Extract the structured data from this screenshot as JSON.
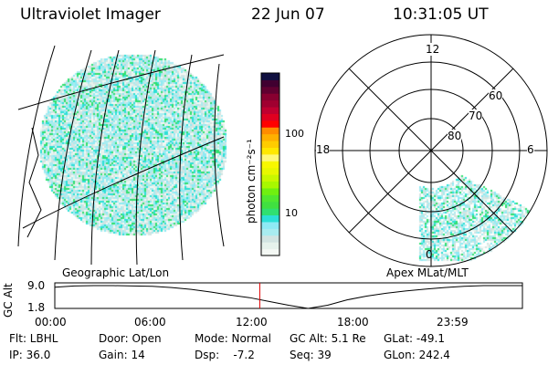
{
  "header": {
    "instrument": "Ultraviolet Imager",
    "date": "22 Jun 07",
    "time": "10:31:05 UT"
  },
  "colorbar": {
    "label": "photon cm⁻²s⁻¹",
    "ticks": [
      "100",
      "10"
    ],
    "colors": [
      "#f4f8f4",
      "#e6f2ec",
      "#d2e4e2",
      "#a8ecf0",
      "#8eeaf4",
      "#2ce0d6",
      "#30e070",
      "#40e040",
      "#50e830",
      "#70f010",
      "#a8f800",
      "#c8f800",
      "#e8f800",
      "#f8f800",
      "#fff878",
      "#ffe800",
      "#ffcc00",
      "#ffb000",
      "#ff8c00",
      "#ff0000",
      "#e00020",
      "#c00030",
      "#a00030",
      "#880030",
      "#600030",
      "#400030",
      "#101040"
    ]
  },
  "left_panel": {
    "caption": "Geographic Lat/Lon"
  },
  "right_panel": {
    "caption": "Apex MLat/MLT",
    "mlt_labels": [
      "12",
      "18",
      "6",
      "0"
    ],
    "lat_labels": [
      "60",
      "70",
      "80"
    ]
  },
  "chart_data": {
    "type": "line",
    "title": "",
    "ylabel": "GC Alt",
    "yticks": [
      "9.0",
      "1.8"
    ],
    "ylim": [
      1.8,
      9.0
    ],
    "xticks": [
      "00:00",
      "06:00",
      "12:00",
      "18:00",
      "23:59"
    ],
    "x": [
      0,
      1,
      2,
      3,
      4,
      5,
      6,
      7,
      8,
      9,
      10,
      11,
      12,
      13,
      14,
      15,
      16,
      17,
      18,
      19,
      20,
      21,
      22,
      23,
      24
    ],
    "values": [
      8.5,
      8.9,
      9.0,
      9.0,
      8.9,
      8.8,
      8.4,
      7.8,
      7.0,
      6.0,
      5.2,
      4.0,
      2.8,
      1.8,
      2.8,
      4.5,
      5.7,
      6.6,
      7.3,
      7.9,
      8.4,
      8.8,
      9.0,
      9.0,
      9.0
    ],
    "current_time_hours": 10.52
  },
  "info": {
    "row1": [
      "Flt: LBHL",
      "Door: Open",
      "Mode: Normal",
      "GC Alt: 5.1 Re",
      "GLat: -49.1"
    ],
    "row2": [
      "IP: 36.0",
      "Gain: 14",
      "Dsp:    -7.2",
      "Seq: 39",
      "GLon: 242.4"
    ]
  }
}
